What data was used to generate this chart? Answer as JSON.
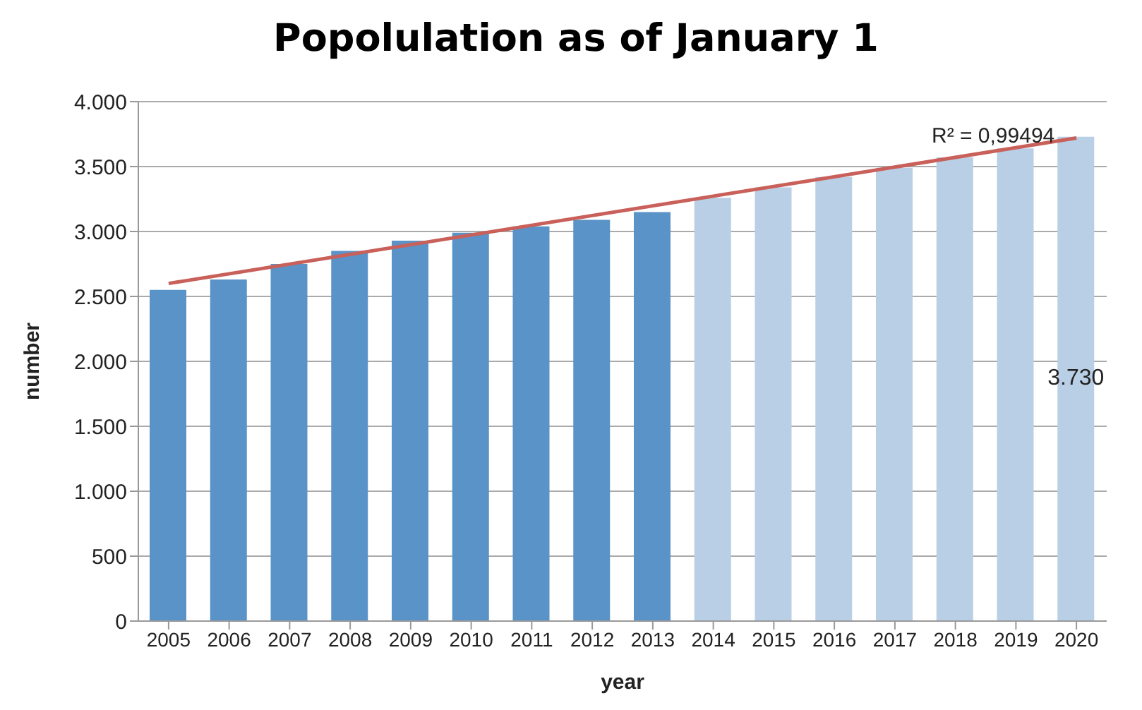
{
  "chart_data": {
    "type": "bar",
    "title": "Popolulation as of January 1",
    "xlabel": "year",
    "ylabel": "number",
    "categories": [
      "2005",
      "2006",
      "2007",
      "2008",
      "2009",
      "2010",
      "2011",
      "2012",
      "2013",
      "2014",
      "2015",
      "2016",
      "2017",
      "2018",
      "2019",
      "2020"
    ],
    "series": [
      {
        "values": [
          2550,
          2630,
          2750,
          2850,
          2930,
          2990,
          3040,
          3090,
          3150,
          3260,
          3340,
          3420,
          3490,
          3570,
          3640,
          3730
        ],
        "colors": [
          "#5a93c8",
          "#5a93c8",
          "#5a93c8",
          "#5a93c8",
          "#5a93c8",
          "#5a93c8",
          "#5a93c8",
          "#5a93c8",
          "#5a93c8",
          "#b8cfe6",
          "#b8cfe6",
          "#b8cfe6",
          "#b8cfe6",
          "#b8cfe6",
          "#b8cfe6",
          "#b8cfe6"
        ],
        "value_labels": [
          null,
          null,
          null,
          null,
          null,
          null,
          null,
          null,
          null,
          null,
          null,
          null,
          null,
          null,
          null,
          "3.730"
        ]
      },
      {
        "type": "line",
        "values": [
          2600,
          null,
          null,
          null,
          null,
          null,
          null,
          null,
          null,
          null,
          null,
          null,
          null,
          null,
          null,
          3720
        ],
        "color": "#c9605a"
      }
    ],
    "annotations": [
      "R² = 0,99494"
    ],
    "ylim": [
      0,
      4000
    ],
    "yticks": [
      {
        "value": 0,
        "label": "0"
      },
      {
        "value": 500,
        "label": "500"
      },
      {
        "value": 1000,
        "label": "1.000"
      },
      {
        "value": 1500,
        "label": "1.500"
      },
      {
        "value": 2000,
        "label": "2.000"
      },
      {
        "value": 2500,
        "label": "2.500"
      },
      {
        "value": 3000,
        "label": "3.000"
      },
      {
        "value": 3500,
        "label": "3.500"
      },
      {
        "value": 4000,
        "label": "4.000"
      }
    ],
    "grid": "y",
    "legend": false
  }
}
